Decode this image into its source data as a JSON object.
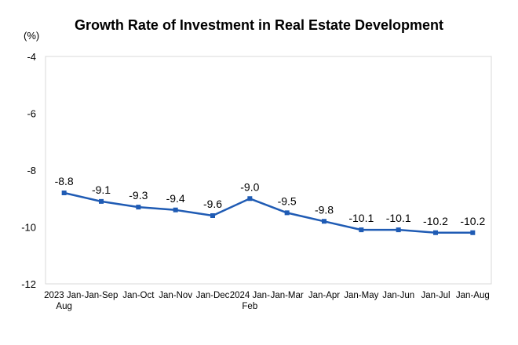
{
  "chart_data": {
    "type": "line",
    "title": "Growth Rate of Investment in Real Estate Development",
    "ylabel": "(%)",
    "ylim": [
      -12,
      -4
    ],
    "yticks": [
      "-4",
      "-6",
      "-8",
      "-10",
      "-12"
    ],
    "categories": [
      [
        "2023 Jan-",
        "Aug"
      ],
      [
        "Jan-Sep"
      ],
      [
        "Jan-Oct"
      ],
      [
        "Jan-Nov"
      ],
      [
        "Jan-Dec"
      ],
      [
        "2024 Jan-",
        "Feb"
      ],
      [
        "Jan-Mar"
      ],
      [
        "Jan-Apr"
      ],
      [
        "Jan-May"
      ],
      [
        "Jan-Jun"
      ],
      [
        "Jan-Jul"
      ],
      [
        "Jan-Aug"
      ]
    ],
    "series": [
      {
        "values": [
          -8.8,
          -9.1,
          -9.3,
          -9.4,
          -9.6,
          -9.0,
          -9.5,
          -9.8,
          -10.1,
          -10.1,
          -10.2,
          -10.2
        ],
        "labels": [
          "-8.8",
          "-9.1",
          "-9.3",
          "-9.4",
          "-9.6",
          "-9.0",
          "-9.5",
          "-9.8",
          "-10.1",
          "-10.1",
          "-10.2",
          "-10.2"
        ]
      }
    ],
    "grid": false,
    "line_color": "#1f5bb4"
  }
}
